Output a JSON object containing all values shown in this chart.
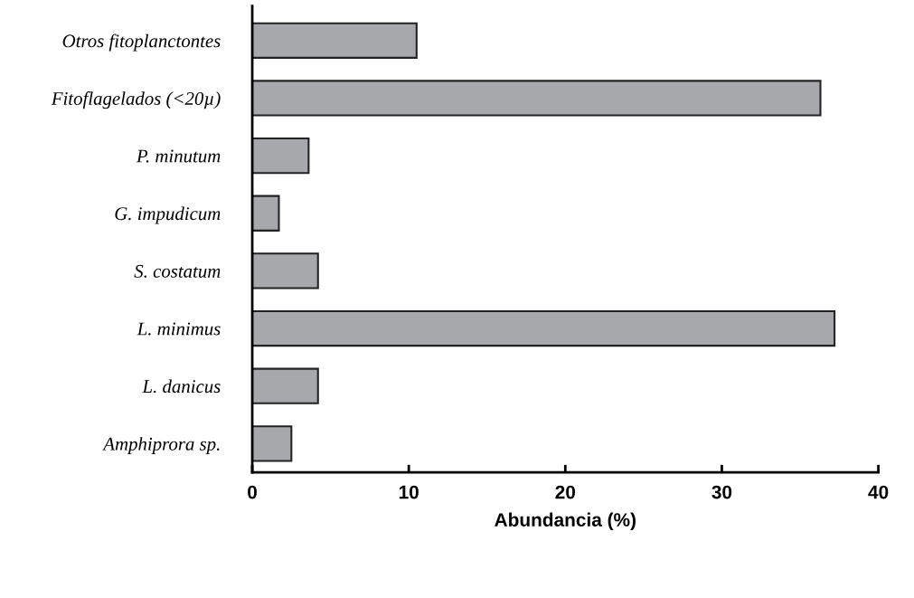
{
  "chart_data": {
    "type": "bar",
    "orientation": "horizontal",
    "xlabel": "Abundancia (%)",
    "categories": [
      "Otros fitoplanctontes",
      "Fitoflagelados (<20µ)",
      "P. minutum",
      "G. impudicum",
      "S. costatum",
      "L. minimus",
      "L. danicus",
      "Amphiprora sp."
    ],
    "values": [
      10.5,
      36.3,
      3.6,
      1.7,
      4.2,
      37.2,
      4.2,
      2.5
    ],
    "color": "#a7a8ac",
    "xlim": [
      0,
      40
    ],
    "xticks": [
      0,
      10,
      20,
      30,
      40
    ],
    "grid": false
  }
}
